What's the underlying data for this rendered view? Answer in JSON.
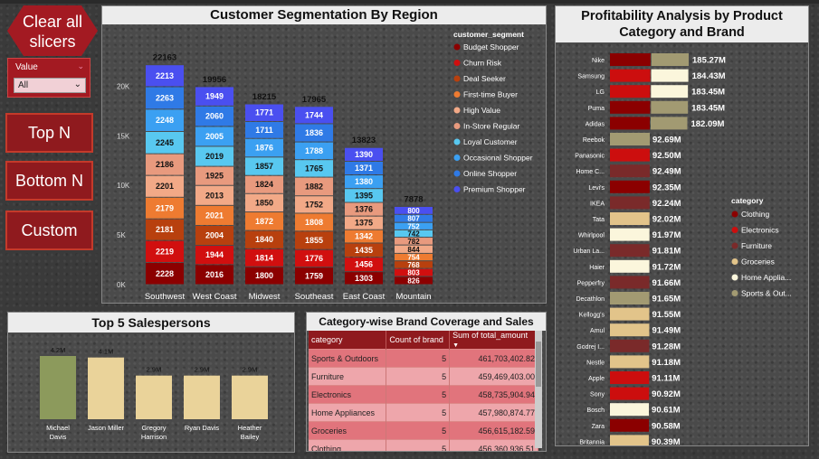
{
  "slicers": {
    "clear_label": "Clear all slicers",
    "value_label": "Value",
    "value_selected": "All",
    "top_n": "Top N",
    "bottom_n": "Bottom N",
    "custom": "Custom"
  },
  "colors": {
    "Budget Shopper": "#8b0000",
    "Churn Risk": "#d10f0f",
    "Deal Seeker": "#b8400e",
    "First-time Buyer": "#ee7b31",
    "High Value": "#f2a987",
    "In-Store Regular": "#e89a7e",
    "Loyal Customer": "#58c8f0",
    "Occasional Shopper": "#3ba0f2",
    "Online Shopper": "#2f7ae6",
    "Premium Shopper": "#4a4ff0"
  },
  "chart_data": [
    {
      "type": "bar",
      "title": "Customer Segmentation By Region",
      "legend_title": "customer_segment",
      "categories": [
        "Southwest",
        "West Coast",
        "Midwest",
        "Southeast",
        "East Coast",
        "Mountain"
      ],
      "totals": [
        22163,
        19956,
        18215,
        17965,
        13823,
        7878
      ],
      "ylim": [
        0,
        23500
      ],
      "yticks": [
        {
          "v": 0,
          "label": "0K"
        },
        {
          "v": 5000,
          "label": "5K"
        },
        {
          "v": 10000,
          "label": "10K"
        },
        {
          "v": 15000,
          "label": "15K"
        },
        {
          "v": 20000,
          "label": "20K"
        }
      ],
      "series": [
        {
          "name": "Budget Shopper",
          "values": [
            2228,
            2016,
            1800,
            1759,
            1303,
            826
          ]
        },
        {
          "name": "Churn Risk",
          "values": [
            2219,
            1944,
            1814,
            1776,
            1456,
            803
          ]
        },
        {
          "name": "Deal Seeker",
          "values": [
            2181,
            2004,
            1840,
            1855,
            1435,
            768
          ]
        },
        {
          "name": "First-time Buyer",
          "values": [
            2179,
            2021,
            1872,
            1808,
            1342,
            754
          ]
        },
        {
          "name": "High Value",
          "values": [
            2201,
            2013,
            1850,
            1752,
            1375,
            844
          ]
        },
        {
          "name": "In-Store Regular",
          "values": [
            2186,
            1925,
            1824,
            1882,
            1376,
            782
          ]
        },
        {
          "name": "Loyal Customer",
          "values": [
            2245,
            2019,
            1857,
            1765,
            1395,
            742
          ]
        },
        {
          "name": "Occasional Shopper",
          "values": [
            2248,
            2005,
            1876,
            1788,
            1380,
            752
          ]
        },
        {
          "name": "Online Shopper",
          "values": [
            2263,
            2060,
            1711,
            1836,
            1371,
            807
          ]
        },
        {
          "name": "Premium Shopper",
          "values": [
            2213,
            1949,
            1771,
            1744,
            1390,
            800
          ]
        }
      ]
    },
    {
      "type": "bar",
      "title": "Profitability Analysis by Product Category and Brand",
      "legend_title": "category",
      "legend": [
        {
          "name": "Clothing",
          "color": "#8b0000"
        },
        {
          "name": "Electronics",
          "color": "#cc0e0e"
        },
        {
          "name": "Furniture",
          "color": "#7a2a2a"
        },
        {
          "name": "Groceries",
          "color": "#e2c48a"
        },
        {
          "name": "Home Applia...",
          "color": "#fbf6dc"
        },
        {
          "name": "Sports & Out...",
          "color": "#a29a72"
        }
      ],
      "bars": [
        {
          "brand": "Nike",
          "label": "185.27M",
          "segments": [
            {
              "c": "#8b0000",
              "v": 0.52
            },
            {
              "c": "#a29a72",
              "v": 0.48
            }
          ]
        },
        {
          "brand": "Samsung",
          "label": "184.43M",
          "segments": [
            {
              "c": "#cc0e0e",
              "v": 0.52
            },
            {
              "c": "#fbf6dc",
              "v": 0.48
            }
          ]
        },
        {
          "brand": "LG",
          "label": "183.45M",
          "segments": [
            {
              "c": "#cc0e0e",
              "v": 0.52
            },
            {
              "c": "#fbf6dc",
              "v": 0.48
            }
          ]
        },
        {
          "brand": "Puma",
          "label": "183.45M",
          "segments": [
            {
              "c": "#8b0000",
              "v": 0.52
            },
            {
              "c": "#a29a72",
              "v": 0.48
            }
          ]
        },
        {
          "brand": "Adidas",
          "label": "182.09M",
          "segments": [
            {
              "c": "#8b0000",
              "v": 0.52
            },
            {
              "c": "#a29a72",
              "v": 0.48
            }
          ]
        },
        {
          "brand": "Reebok",
          "label": "92.69M",
          "segments": [
            {
              "c": "#a29a72",
              "v": 1
            }
          ]
        },
        {
          "brand": "Panasonic",
          "label": "92.50M",
          "segments": [
            {
              "c": "#cc0e0e",
              "v": 1
            }
          ]
        },
        {
          "brand": "Home C...",
          "label": "92.49M",
          "segments": [
            {
              "c": "#7a2a2a",
              "v": 1
            }
          ]
        },
        {
          "brand": "Levi's",
          "label": "92.35M",
          "segments": [
            {
              "c": "#8b0000",
              "v": 1
            }
          ]
        },
        {
          "brand": "IKEA",
          "label": "92.24M",
          "segments": [
            {
              "c": "#7a2a2a",
              "v": 1
            }
          ]
        },
        {
          "brand": "Tata",
          "label": "92.02M",
          "segments": [
            {
              "c": "#e2c48a",
              "v": 1
            }
          ]
        },
        {
          "brand": "Whirlpool",
          "label": "91.97M",
          "segments": [
            {
              "c": "#fbf6dc",
              "v": 1
            }
          ]
        },
        {
          "brand": "Urban La...",
          "label": "91.81M",
          "segments": [
            {
              "c": "#7a2a2a",
              "v": 1
            }
          ]
        },
        {
          "brand": "Haier",
          "label": "91.72M",
          "segments": [
            {
              "c": "#fbf6dc",
              "v": 1
            }
          ]
        },
        {
          "brand": "Pepperfry",
          "label": "91.66M",
          "segments": [
            {
              "c": "#7a2a2a",
              "v": 1
            }
          ]
        },
        {
          "brand": "Decathlon",
          "label": "91.65M",
          "segments": [
            {
              "c": "#a29a72",
              "v": 1
            }
          ]
        },
        {
          "brand": "Kellogg's",
          "label": "91.55M",
          "segments": [
            {
              "c": "#e2c48a",
              "v": 1
            }
          ]
        },
        {
          "brand": "Amul",
          "label": "91.49M",
          "segments": [
            {
              "c": "#e2c48a",
              "v": 1
            }
          ]
        },
        {
          "brand": "Godrej I...",
          "label": "91.28M",
          "segments": [
            {
              "c": "#7a2a2a",
              "v": 1
            }
          ]
        },
        {
          "brand": "Nestle",
          "label": "91.18M",
          "segments": [
            {
              "c": "#e2c48a",
              "v": 1
            }
          ]
        },
        {
          "brand": "Apple",
          "label": "91.11M",
          "segments": [
            {
              "c": "#cc0e0e",
              "v": 1
            }
          ]
        },
        {
          "brand": "Sony",
          "label": "90.92M",
          "segments": [
            {
              "c": "#cc0e0e",
              "v": 1
            }
          ]
        },
        {
          "brand": "Bosch",
          "label": "90.61M",
          "segments": [
            {
              "c": "#fbf6dc",
              "v": 1
            }
          ]
        },
        {
          "brand": "Zara",
          "label": "90.58M",
          "segments": [
            {
              "c": "#8b0000",
              "v": 1
            }
          ]
        },
        {
          "brand": "Britannia",
          "label": "90.39M",
          "segments": [
            {
              "c": "#e2c48a",
              "v": 1
            }
          ]
        }
      ],
      "values_millions": [
        185.27,
        184.43,
        183.45,
        183.45,
        182.09,
        92.69,
        92.5,
        92.49,
        92.35,
        92.24,
        92.02,
        91.97,
        91.81,
        91.72,
        91.66,
        91.65,
        91.55,
        91.49,
        91.28,
        91.18,
        91.11,
        90.92,
        90.61,
        90.58,
        90.39
      ]
    },
    {
      "type": "bar",
      "title": "Top 5 Salespersons",
      "categories": [
        "Michael Davis",
        "Jason Miller",
        "Gregory Harrison",
        "Ryan Davis",
        "Heather Bailey"
      ],
      "values": [
        4.2,
        4.1,
        2.9,
        2.9,
        2.9
      ],
      "labels": [
        "4.2M",
        "4.1M",
        "2.9M",
        "2.9M",
        "2.9M"
      ],
      "colors": [
        "#8c9a5c",
        "#ead39a",
        "#ead39a",
        "#ead39a",
        "#ead39a"
      ],
      "ylim": [
        0,
        4.2
      ]
    },
    {
      "type": "table",
      "title": "Category-wise Brand Coverage and Sales",
      "columns": [
        "category",
        "Count of brand",
        "Sum of total_amount"
      ],
      "rows": [
        [
          "Sports & Outdoors",
          "5",
          "461,703,402.82"
        ],
        [
          "Furniture",
          "5",
          "459,469,403.00"
        ],
        [
          "Electronics",
          "5",
          "458,735,904.94"
        ],
        [
          "Home Appliances",
          "5",
          "457,980,874.77"
        ],
        [
          "Groceries",
          "5",
          "456,615,182.59"
        ],
        [
          "Clothing",
          "5",
          "456,360,936.51"
        ]
      ]
    }
  ]
}
